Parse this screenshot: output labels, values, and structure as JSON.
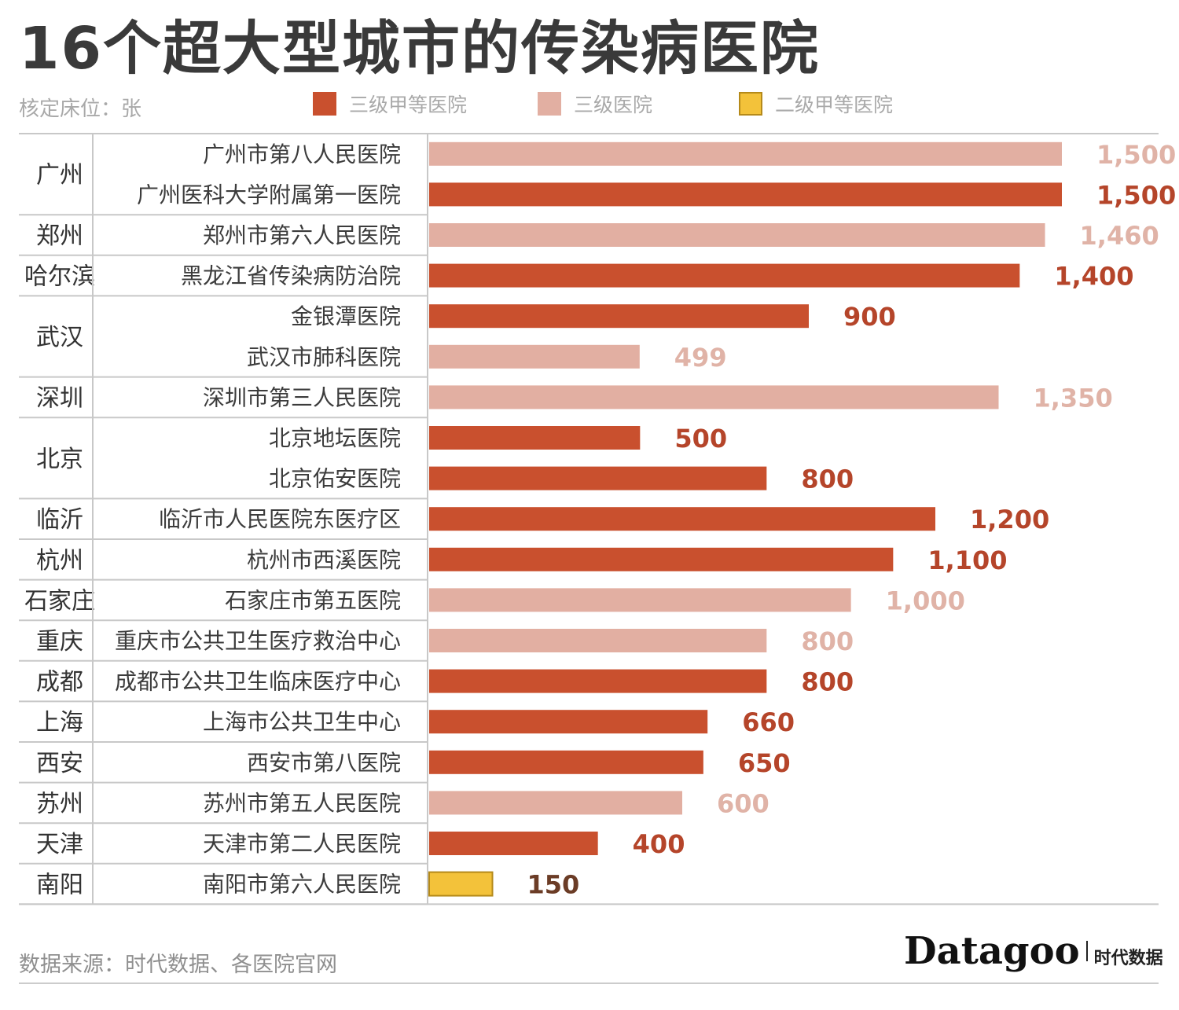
{
  "chart_data": {
    "type": "bar",
    "orientation": "horizontal",
    "title": "16个超大型城市的传染病医院",
    "unit_label": "核定床位：张",
    "legend": [
      {
        "key": "a3",
        "label": "三级甲等医院",
        "color": "#c9502e"
      },
      {
        "key": "t3",
        "label": "三级医院",
        "color": "#e2afa2"
      },
      {
        "key": "a2",
        "label": "二级甲等医院",
        "color": "#f3c23a"
      }
    ],
    "xlim": [
      0,
      1500
    ],
    "groups": [
      {
        "city": "广州",
        "rows": [
          {
            "hospital": "广州市第八人民医院",
            "value": 1500,
            "value_label": "1,500",
            "level": "t3"
          },
          {
            "hospital": "广州医科大学附属第一医院",
            "value": 1500,
            "value_label": "1,500",
            "level": "a3"
          }
        ]
      },
      {
        "city": "郑州",
        "rows": [
          {
            "hospital": "郑州市第六人民医院",
            "value": 1460,
            "value_label": "1,460",
            "level": "t3"
          }
        ]
      },
      {
        "city": "哈尔滨",
        "rows": [
          {
            "hospital": "黑龙江省传染病防治院",
            "value": 1400,
            "value_label": "1,400",
            "level": "a3"
          }
        ]
      },
      {
        "city": "武汉",
        "rows": [
          {
            "hospital": "金银潭医院",
            "value": 900,
            "value_label": "900",
            "level": "a3"
          },
          {
            "hospital": "武汉市肺科医院",
            "value": 499,
            "value_label": "499",
            "level": "t3"
          }
        ]
      },
      {
        "city": "深圳",
        "rows": [
          {
            "hospital": "深圳市第三人民医院",
            "value": 1350,
            "value_label": "1,350",
            "level": "t3"
          }
        ]
      },
      {
        "city": "北京",
        "rows": [
          {
            "hospital": "北京地坛医院",
            "value": 500,
            "value_label": "500",
            "level": "a3"
          },
          {
            "hospital": "北京佑安医院",
            "value": 800,
            "value_label": "800",
            "level": "a3"
          }
        ]
      },
      {
        "city": "临沂",
        "rows": [
          {
            "hospital": "临沂市人民医院东医疗区",
            "value": 1200,
            "value_label": "1,200",
            "level": "a3"
          }
        ]
      },
      {
        "city": "杭州",
        "rows": [
          {
            "hospital": "杭州市西溪医院",
            "value": 1100,
            "value_label": "1,100",
            "level": "a3"
          }
        ]
      },
      {
        "city": "石家庄",
        "rows": [
          {
            "hospital": "石家庄市第五医院",
            "value": 1000,
            "value_label": "1,000",
            "level": "t3"
          }
        ]
      },
      {
        "city": "重庆",
        "rows": [
          {
            "hospital": "重庆市公共卫生医疗救治中心",
            "value": 800,
            "value_label": "800",
            "level": "t3"
          }
        ]
      },
      {
        "city": "成都",
        "rows": [
          {
            "hospital": "成都市公共卫生临床医疗中心",
            "value": 800,
            "value_label": "800",
            "level": "a3"
          }
        ]
      },
      {
        "city": "上海",
        "rows": [
          {
            "hospital": "上海市公共卫生中心",
            "value": 660,
            "value_label": "660",
            "level": "a3"
          }
        ]
      },
      {
        "city": "西安",
        "rows": [
          {
            "hospital": "西安市第八医院",
            "value": 650,
            "value_label": "650",
            "level": "a3"
          }
        ]
      },
      {
        "city": "苏州",
        "rows": [
          {
            "hospital": "苏州市第五人民医院",
            "value": 600,
            "value_label": "600",
            "level": "t3"
          }
        ]
      },
      {
        "city": "天津",
        "rows": [
          {
            "hospital": "天津市第二人民医院",
            "value": 400,
            "value_label": "400",
            "level": "a3"
          }
        ]
      },
      {
        "city": "南阳",
        "rows": [
          {
            "hospital": "南阳市第六人民医院",
            "value": 150,
            "value_label": "150",
            "level": "a2"
          }
        ]
      }
    ],
    "label_colors": {
      "a3": "#b5452a",
      "t3": "#e0b3a7",
      "a2": "#6b3c26"
    }
  },
  "footer": {
    "source": "数据来源：时代数据、各医院官网",
    "logo_word": "Datagoo",
    "logo_cn": "时代数据"
  }
}
